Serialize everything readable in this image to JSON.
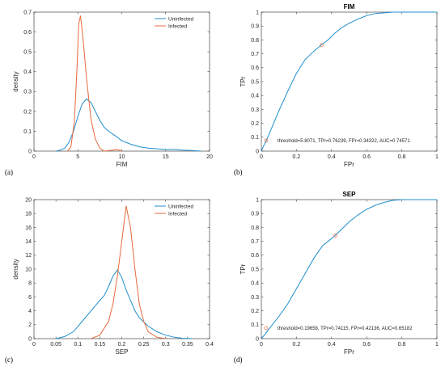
{
  "colors": {
    "uninfected": "#1f8fcc",
    "infected": "#e8693c",
    "axis": "#262626"
  },
  "chart_data": [
    {
      "panel_label": "(a)",
      "type": "line",
      "title": "",
      "xlabel": "FIM",
      "ylabel": "density",
      "xlim": [
        0,
        20
      ],
      "ylim": [
        0,
        0.7
      ],
      "xticks": [
        "0",
        "5",
        "10",
        "15",
        "20"
      ],
      "yticks": [
        "0",
        "0.1",
        "0.2",
        "0.3",
        "0.4",
        "0.5",
        "0.6",
        "0.7"
      ],
      "legend_position": "top-right",
      "series": [
        {
          "name": "Uninfected",
          "x": [
            2.5,
            3,
            3.5,
            4,
            4.5,
            5,
            5.5,
            6,
            6.5,
            7,
            7.5,
            8,
            8.5,
            9,
            9.5,
            10,
            11,
            12,
            13,
            14,
            15,
            16,
            17,
            18,
            19
          ],
          "y": [
            0,
            0.005,
            0.015,
            0.045,
            0.1,
            0.175,
            0.24,
            0.262,
            0.245,
            0.2,
            0.155,
            0.12,
            0.1,
            0.085,
            0.07,
            0.052,
            0.035,
            0.022,
            0.015,
            0.012,
            0.008,
            0.008,
            0.005,
            0.003,
            0
          ]
        },
        {
          "name": "Infected",
          "x": [
            3.8,
            4.2,
            4.6,
            4.9,
            5.1,
            5.3,
            5.6,
            6,
            6.5,
            7,
            7.5,
            8,
            9.5,
            10
          ],
          "y": [
            0,
            0.02,
            0.15,
            0.42,
            0.64,
            0.682,
            0.56,
            0.36,
            0.16,
            0.06,
            0.015,
            0,
            0.008,
            0
          ]
        }
      ]
    },
    {
      "panel_label": "(b)",
      "type": "line",
      "title": "FIM",
      "xlabel": "FPr",
      "ylabel": "TPr",
      "xlim": [
        0,
        1
      ],
      "ylim": [
        0,
        1
      ],
      "xticks": [
        "0",
        "0.2",
        "0.4",
        "0.6",
        "0.8",
        "1"
      ],
      "yticks": [
        "0",
        "0.1",
        "0.2",
        "0.3",
        "0.4",
        "0.5",
        "0.6",
        "0.7",
        "0.8",
        "0.9",
        "1"
      ],
      "series": [
        {
          "x": [
            0,
            0.01,
            0.03,
            0.06,
            0.1,
            0.15,
            0.2,
            0.25,
            0.3,
            0.34,
            0.38,
            0.42,
            0.46,
            0.5,
            0.55,
            0.6,
            0.65,
            0.7,
            0.75,
            0.8,
            1
          ],
          "y": [
            0,
            0.03,
            0.08,
            0.17,
            0.29,
            0.43,
            0.56,
            0.66,
            0.72,
            0.762,
            0.8,
            0.85,
            0.89,
            0.92,
            0.95,
            0.975,
            0.99,
            0.995,
            1,
            1,
            1
          ]
        }
      ],
      "threshold_point": {
        "x": 0.34322,
        "y": 0.76239
      },
      "annotation": "threshold=5.8071, TPr=0.76239, FPr=0.34322, AUC=0.74571"
    },
    {
      "panel_label": "(c)",
      "type": "line",
      "title": "",
      "xlabel": "SEP",
      "ylabel": "density",
      "xlim": [
        0,
        0.4
      ],
      "ylim": [
        0,
        20
      ],
      "xticks": [
        "0",
        "0.05",
        "0.1",
        "0.15",
        "0.2",
        "0.25",
        "0.3",
        "0.35",
        "0.4"
      ],
      "yticks": [
        "0",
        "2",
        "4",
        "6",
        "8",
        "10",
        "12",
        "14",
        "16",
        "18",
        "20"
      ],
      "legend_position": "top-right",
      "series": [
        {
          "name": "Uninfected",
          "x": [
            0.05,
            0.07,
            0.09,
            0.11,
            0.13,
            0.15,
            0.16,
            0.17,
            0.18,
            0.19,
            0.2,
            0.21,
            0.22,
            0.23,
            0.24,
            0.26,
            0.28,
            0.3,
            0.32,
            0.34,
            0.36
          ],
          "y": [
            0,
            0.3,
            1,
            2.5,
            4,
            5.5,
            6.2,
            7.5,
            9,
            9.9,
            8.8,
            7,
            5.5,
            4,
            3,
            1.8,
            1,
            0.5,
            0.2,
            0.05,
            0
          ]
        },
        {
          "name": "Infected",
          "x": [
            0.13,
            0.15,
            0.17,
            0.18,
            0.19,
            0.2,
            0.21,
            0.22,
            0.23,
            0.24,
            0.25,
            0.26,
            0.28,
            0.3
          ],
          "y": [
            0,
            0.5,
            2.5,
            5,
            9,
            14,
            19.1,
            16,
            10,
            5,
            2.5,
            1,
            0.2,
            0
          ]
        }
      ]
    },
    {
      "panel_label": "(d)",
      "type": "line",
      "title": "SEP",
      "xlabel": "FPr",
      "ylabel": "TPr",
      "xlim": [
        0,
        1
      ],
      "ylim": [
        0,
        1
      ],
      "xticks": [
        "0",
        "0.2",
        "0.4",
        "0.6",
        "0.8",
        "1"
      ],
      "yticks": [
        "0",
        "0.1",
        "0.2",
        "0.3",
        "0.4",
        "0.5",
        "0.6",
        "0.7",
        "0.8",
        "0.9",
        "1"
      ],
      "series": [
        {
          "x": [
            0,
            0.02,
            0.05,
            0.1,
            0.15,
            0.2,
            0.25,
            0.3,
            0.35,
            0.4,
            0.42,
            0.46,
            0.5,
            0.55,
            0.6,
            0.65,
            0.7,
            0.75,
            0.8,
            1
          ],
          "y": [
            0,
            0.03,
            0.08,
            0.16,
            0.25,
            0.36,
            0.47,
            0.58,
            0.67,
            0.72,
            0.741,
            0.79,
            0.84,
            0.89,
            0.93,
            0.96,
            0.98,
            0.995,
            1,
            1
          ]
        }
      ],
      "threshold_point": {
        "x": 0.42136,
        "y": 0.74115
      },
      "annotation": "threshold=0.19658, TPr=0.74115, FPr=0.42136, AUC=0.65182"
    }
  ]
}
